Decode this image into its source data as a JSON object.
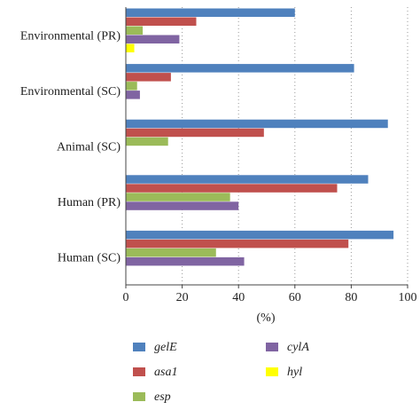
{
  "chart_data": {
    "type": "bar",
    "orientation": "horizontal",
    "categories": [
      "Environmental (PR)",
      "Environmental (SC)",
      "Animal (SC)",
      "Human (PR)",
      "Human (SC)"
    ],
    "series": [
      {
        "name": "gelE",
        "color": "#4f81bd",
        "values": [
          60,
          81,
          93,
          86,
          95
        ]
      },
      {
        "name": "asa1",
        "color": "#c0504d",
        "values": [
          25,
          16,
          49,
          75,
          79
        ]
      },
      {
        "name": "esp",
        "color": "#9bbb59",
        "values": [
          6,
          4,
          15,
          37,
          32
        ]
      },
      {
        "name": "cylA",
        "color": "#8064a2",
        "values": [
          19,
          5,
          0,
          40,
          42
        ]
      },
      {
        "name": "hyl",
        "color": "#ffff00",
        "values": [
          3,
          0,
          0,
          0,
          0
        ]
      }
    ],
    "xlabel": "(%)",
    "ylabel": "",
    "xlim": [
      0,
      100
    ],
    "xticks": [
      "0",
      "20",
      "40",
      "60",
      "80",
      "100"
    ],
    "grid": "vertical dotted",
    "legend_position": "bottom"
  }
}
